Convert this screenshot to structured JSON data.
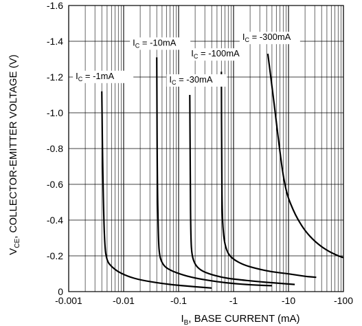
{
  "chart_data": {
    "type": "line",
    "x_scale": "log",
    "x_axis": {
      "label_main": "I",
      "label_sub": "B",
      "label_rest": ", BASE CURRENT (mA)",
      "range": [
        -0.001,
        -100
      ],
      "ticks": [
        {
          "value": -0.001,
          "label": "-0.001"
        },
        {
          "value": -0.01,
          "label": "-0.01"
        },
        {
          "value": -0.1,
          "label": "-0.1"
        },
        {
          "value": -1,
          "label": "-1"
        },
        {
          "value": -10,
          "label": "-10"
        },
        {
          "value": -100,
          "label": "-100"
        }
      ]
    },
    "y_axis": {
      "label_main": "V",
      "label_sub": "CE",
      "label_rest": ", COLLECTOR-EMITTER VOLTAGE (V)",
      "range": [
        0,
        -1.6
      ],
      "ticks": [
        {
          "value": 0,
          "label": "0"
        },
        {
          "value": -0.2,
          "label": "-0.2"
        },
        {
          "value": -0.4,
          "label": "-0.4"
        },
        {
          "value": -0.6,
          "label": "-0.6"
        },
        {
          "value": -0.8,
          "label": "-0.8"
        },
        {
          "value": -1.0,
          "label": "-1.0"
        },
        {
          "value": -1.2,
          "label": "-1.2"
        },
        {
          "value": -1.4,
          "label": "-1.4"
        },
        {
          "value": -1.6,
          "label": "-1.6"
        }
      ]
    },
    "grid": true,
    "series": [
      {
        "name_main": "I",
        "name_sub": "C",
        "name_rest": " = -1mA",
        "x": [
          -0.004,
          -0.0042,
          -0.0045,
          -0.005,
          -0.006,
          -0.008,
          -0.012,
          -0.02,
          -0.05,
          -0.1,
          -0.2,
          -0.4
        ],
        "y": [
          -1.12,
          -0.6,
          -0.25,
          -0.17,
          -0.14,
          -0.11,
          -0.085,
          -0.065,
          -0.045,
          -0.035,
          -0.027,
          -0.02
        ]
      },
      {
        "name_main": "I",
        "name_sub": "C",
        "name_rest": " = -10mA",
        "x": [
          -0.04,
          -0.041,
          -0.043,
          -0.045,
          -0.05,
          -0.06,
          -0.1,
          -0.2,
          -0.5,
          -1,
          -2,
          -5
        ],
        "y": [
          -1.31,
          -0.6,
          -0.28,
          -0.2,
          -0.16,
          -0.13,
          -0.1,
          -0.075,
          -0.055,
          -0.045,
          -0.038,
          -0.033
        ]
      },
      {
        "name_main": "I",
        "name_sub": "C",
        "name_rest": " = -30mA",
        "x": [
          -0.16,
          -0.163,
          -0.167,
          -0.175,
          -0.2,
          -0.25,
          -0.35,
          -0.6,
          -1,
          -3,
          -8,
          -13
        ],
        "y": [
          -1.1,
          -0.6,
          -0.3,
          -0.2,
          -0.15,
          -0.12,
          -0.1,
          -0.08,
          -0.07,
          -0.055,
          -0.045,
          -0.04
        ]
      },
      {
        "name_main": "I",
        "name_sub": "C",
        "name_rest": " = -100mA",
        "x": [
          -0.6,
          -0.61,
          -0.62,
          -0.65,
          -0.7,
          -0.8,
          -1,
          -1.5,
          -2.5,
          -5,
          -10,
          -20,
          -32
        ],
        "y": [
          -1.23,
          -0.7,
          -0.45,
          -0.33,
          -0.26,
          -0.21,
          -0.18,
          -0.15,
          -0.13,
          -0.11,
          -0.1,
          -0.085,
          -0.08
        ]
      },
      {
        "name_main": "I",
        "name_sub": "C",
        "name_rest": " = -300mA",
        "x": [
          -4.2,
          -5,
          -6,
          -7,
          -8,
          -9,
          -10,
          -12,
          -15,
          -20,
          -30,
          -50,
          -80,
          -100
        ],
        "y": [
          -1.33,
          -1.15,
          -0.95,
          -0.78,
          -0.65,
          -0.57,
          -0.52,
          -0.46,
          -0.4,
          -0.34,
          -0.28,
          -0.23,
          -0.2,
          -0.19
        ]
      }
    ]
  }
}
